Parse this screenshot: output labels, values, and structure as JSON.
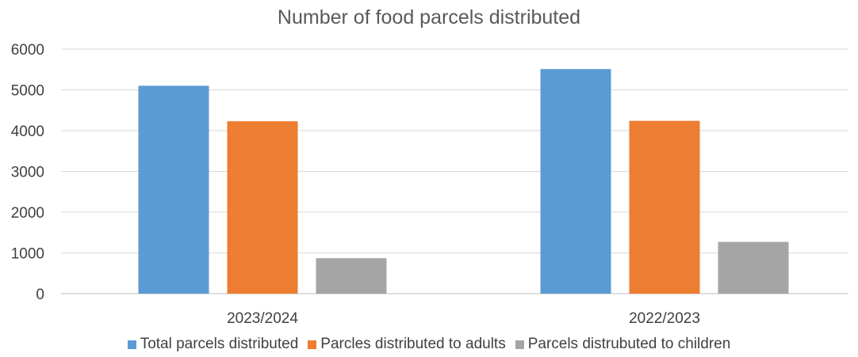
{
  "chart_data": {
    "type": "bar",
    "title": "Number of food parcels distributed",
    "categories": [
      "2023/2024",
      "2022/2023"
    ],
    "series": [
      {
        "name": "Total parcels distributed",
        "color": "#5B9BD5",
        "values": [
          5100,
          5510
        ]
      },
      {
        "name": "Parcles distributed to adults",
        "color": "#ED7D31",
        "values": [
          4230,
          4240
        ]
      },
      {
        "name": "Parcels distrubuted to children",
        "color": "#A5A5A5",
        "values": [
          870,
          1270
        ]
      }
    ],
    "ylim": [
      0,
      6000
    ],
    "yticks": [
      0,
      1000,
      2000,
      3000,
      4000,
      5000,
      6000
    ],
    "xlabel": "",
    "ylabel": "",
    "grid": true,
    "legend": "bottom"
  }
}
